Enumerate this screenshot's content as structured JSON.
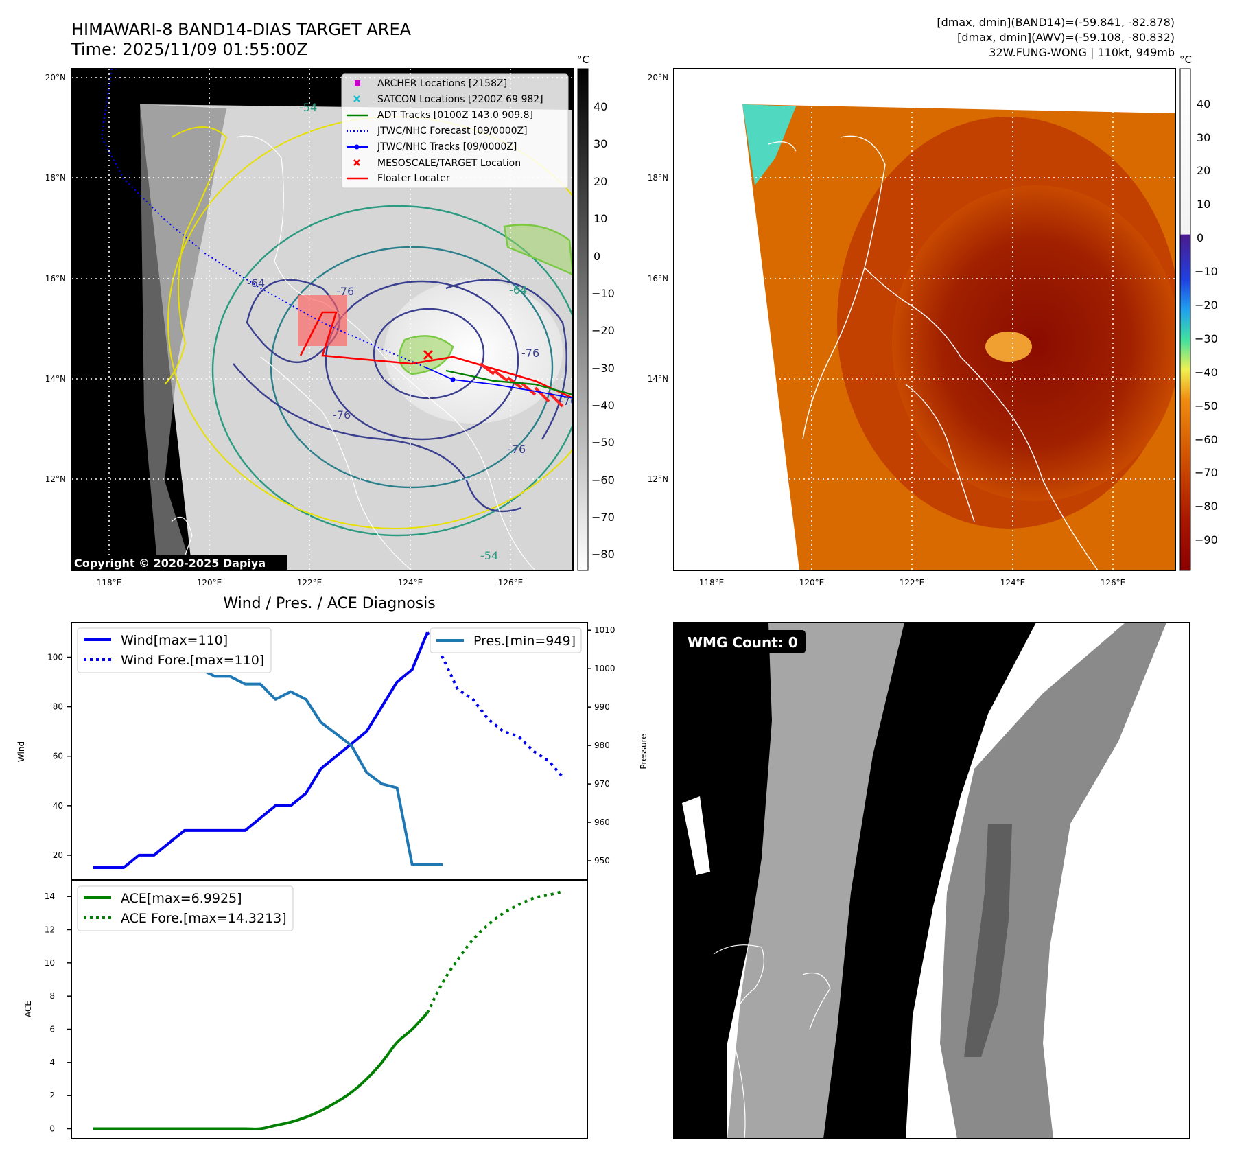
{
  "header": {
    "title_line1": "HIMAWARI-8 BAND14-DIAS TARGET AREA",
    "title_line2": "Time: 2025/11/09 01:55:00Z",
    "stats_line1": "[dmax, dmin](BAND14)=(-59.841, -82.878)",
    "stats_line2": "[dmax, dmin](AWV)=(-59.108, -80.832)",
    "stats_line3": "32W.FUNG-WONG | 110kt, 949mb"
  },
  "map_axes": {
    "lat_ticks": [
      "20°N",
      "18°N",
      "16°N",
      "14°N",
      "12°N"
    ],
    "lon_ticks": [
      "118°E",
      "120°E",
      "122°E",
      "124°E",
      "126°E"
    ],
    "colorbar_unit": "°C"
  },
  "left_map": {
    "colorbar_ticks": [
      "40",
      "30",
      "20",
      "10",
      "0",
      "−10",
      "−20",
      "−30",
      "−40",
      "−50",
      "−60",
      "−70",
      "−80"
    ],
    "copyright": "Copyright © 2020-2025 Dapiya",
    "contour_labels": [
      "-54",
      "-64",
      "-76",
      "-76",
      "-76",
      "-76",
      "-76",
      "-64",
      "-54"
    ],
    "legend": [
      {
        "label": "ARCHER Locations [2158Z]",
        "color": "#cc00cc",
        "marker": "square"
      },
      {
        "label": "SATCON Locations [2200Z 69 982]",
        "color": "#17becf",
        "marker": "x"
      },
      {
        "label": "ADT Tracks [0100Z 143.0 909.8]",
        "color": "#008000",
        "marker": "line"
      },
      {
        "label": "JTWC/NHC Forecast [09/0000Z]",
        "color": "#0000ff",
        "marker": "dotted"
      },
      {
        "label": "JTWC/NHC Tracks [09/0000Z]",
        "color": "#0000ff",
        "marker": "line-dot"
      },
      {
        "label": "MESOSCALE/TARGET Location",
        "color": "#ff0000",
        "marker": "x"
      },
      {
        "label": "Floater Locater",
        "color": "#ff0000",
        "marker": "line"
      }
    ]
  },
  "right_map": {
    "colorbar_ticks": [
      "40",
      "30",
      "20",
      "10",
      "0",
      "−10",
      "−20",
      "−30",
      "−40",
      "−50",
      "−60",
      "−70",
      "−80",
      "−90"
    ]
  },
  "wmg_panel": {
    "label": "WMG Count: 0"
  },
  "chart_data": [
    {
      "type": "line",
      "title": "Wind / Pres. / ACE Diagnosis",
      "ylabel": "Wind",
      "ylabel_right": "Pressure",
      "ylim": [
        10,
        114
      ],
      "ylim_right": [
        945,
        1012
      ],
      "yticks": [
        20,
        40,
        60,
        80,
        100
      ],
      "yticks_right": [
        950,
        960,
        970,
        980,
        990,
        1000,
        1010
      ],
      "x_index_range": [
        0,
        31
      ],
      "grid": false,
      "legend_left": "top-left",
      "legend_right": "top-right",
      "series": [
        {
          "name": "Wind[max=110]",
          "axis": "left",
          "color": "#0000ee",
          "style": "solid",
          "x": [
            0,
            1,
            2,
            3,
            4,
            5,
            6,
            7,
            8,
            9,
            10,
            11,
            12,
            13,
            14,
            15,
            16,
            17,
            18,
            19,
            20,
            21,
            22
          ],
          "values": [
            15,
            15,
            15,
            20,
            20,
            25,
            30,
            30,
            30,
            30,
            30,
            35,
            40,
            40,
            45,
            55,
            60,
            65,
            70,
            80,
            90,
            95,
            110
          ]
        },
        {
          "name": "Wind Fore.[max=110]",
          "axis": "left",
          "color": "#0000ee",
          "style": "dotted",
          "x": [
            22,
            23,
            24,
            25,
            26,
            27,
            28,
            29,
            30,
            31
          ],
          "values": [
            110,
            100,
            87,
            83,
            75,
            70,
            68,
            62,
            58,
            51
          ]
        },
        {
          "name": "Pres.[min=949]",
          "axis": "right",
          "color": "#1f77b4",
          "style": "solid",
          "x": [
            0,
            1,
            2,
            3,
            4,
            5,
            6,
            7,
            8,
            9,
            10,
            11,
            12,
            13,
            14,
            15,
            16,
            17,
            18,
            19,
            20,
            21,
            22,
            23
          ],
          "values": [
            1009,
            1007,
            1007,
            1006,
            1005,
            1000,
            1000,
            1000,
            998,
            998,
            996,
            996,
            992,
            994,
            992,
            986,
            983,
            980,
            973,
            970,
            969,
            949,
            949,
            949
          ]
        }
      ]
    },
    {
      "type": "line",
      "ylabel": "ACE",
      "ylim": [
        -0.6,
        15
      ],
      "yticks": [
        0,
        2,
        4,
        6,
        8,
        10,
        12,
        14
      ],
      "x_index_range": [
        0,
        31
      ],
      "grid": false,
      "legend": "top-left",
      "series": [
        {
          "name": "ACE[max=6.9925]",
          "color": "#008000",
          "style": "solid",
          "x": [
            0,
            2,
            4,
            6,
            8,
            10,
            11,
            12,
            13,
            14,
            15,
            16,
            17,
            18,
            19,
            20,
            21,
            22
          ],
          "values": [
            0,
            0,
            0,
            0,
            0,
            0,
            0,
            0.2,
            0.4,
            0.7,
            1.1,
            1.6,
            2.2,
            3.0,
            4.0,
            5.2,
            6.0,
            6.99
          ]
        },
        {
          "name": "ACE Fore.[max=14.3213]",
          "color": "#008000",
          "style": "dotted",
          "x": [
            22,
            23,
            24,
            25,
            26,
            27,
            28,
            29,
            30,
            31
          ],
          "values": [
            6.99,
            8.8,
            10.2,
            11.4,
            12.3,
            13.0,
            13.5,
            13.9,
            14.1,
            14.32
          ]
        }
      ]
    }
  ]
}
